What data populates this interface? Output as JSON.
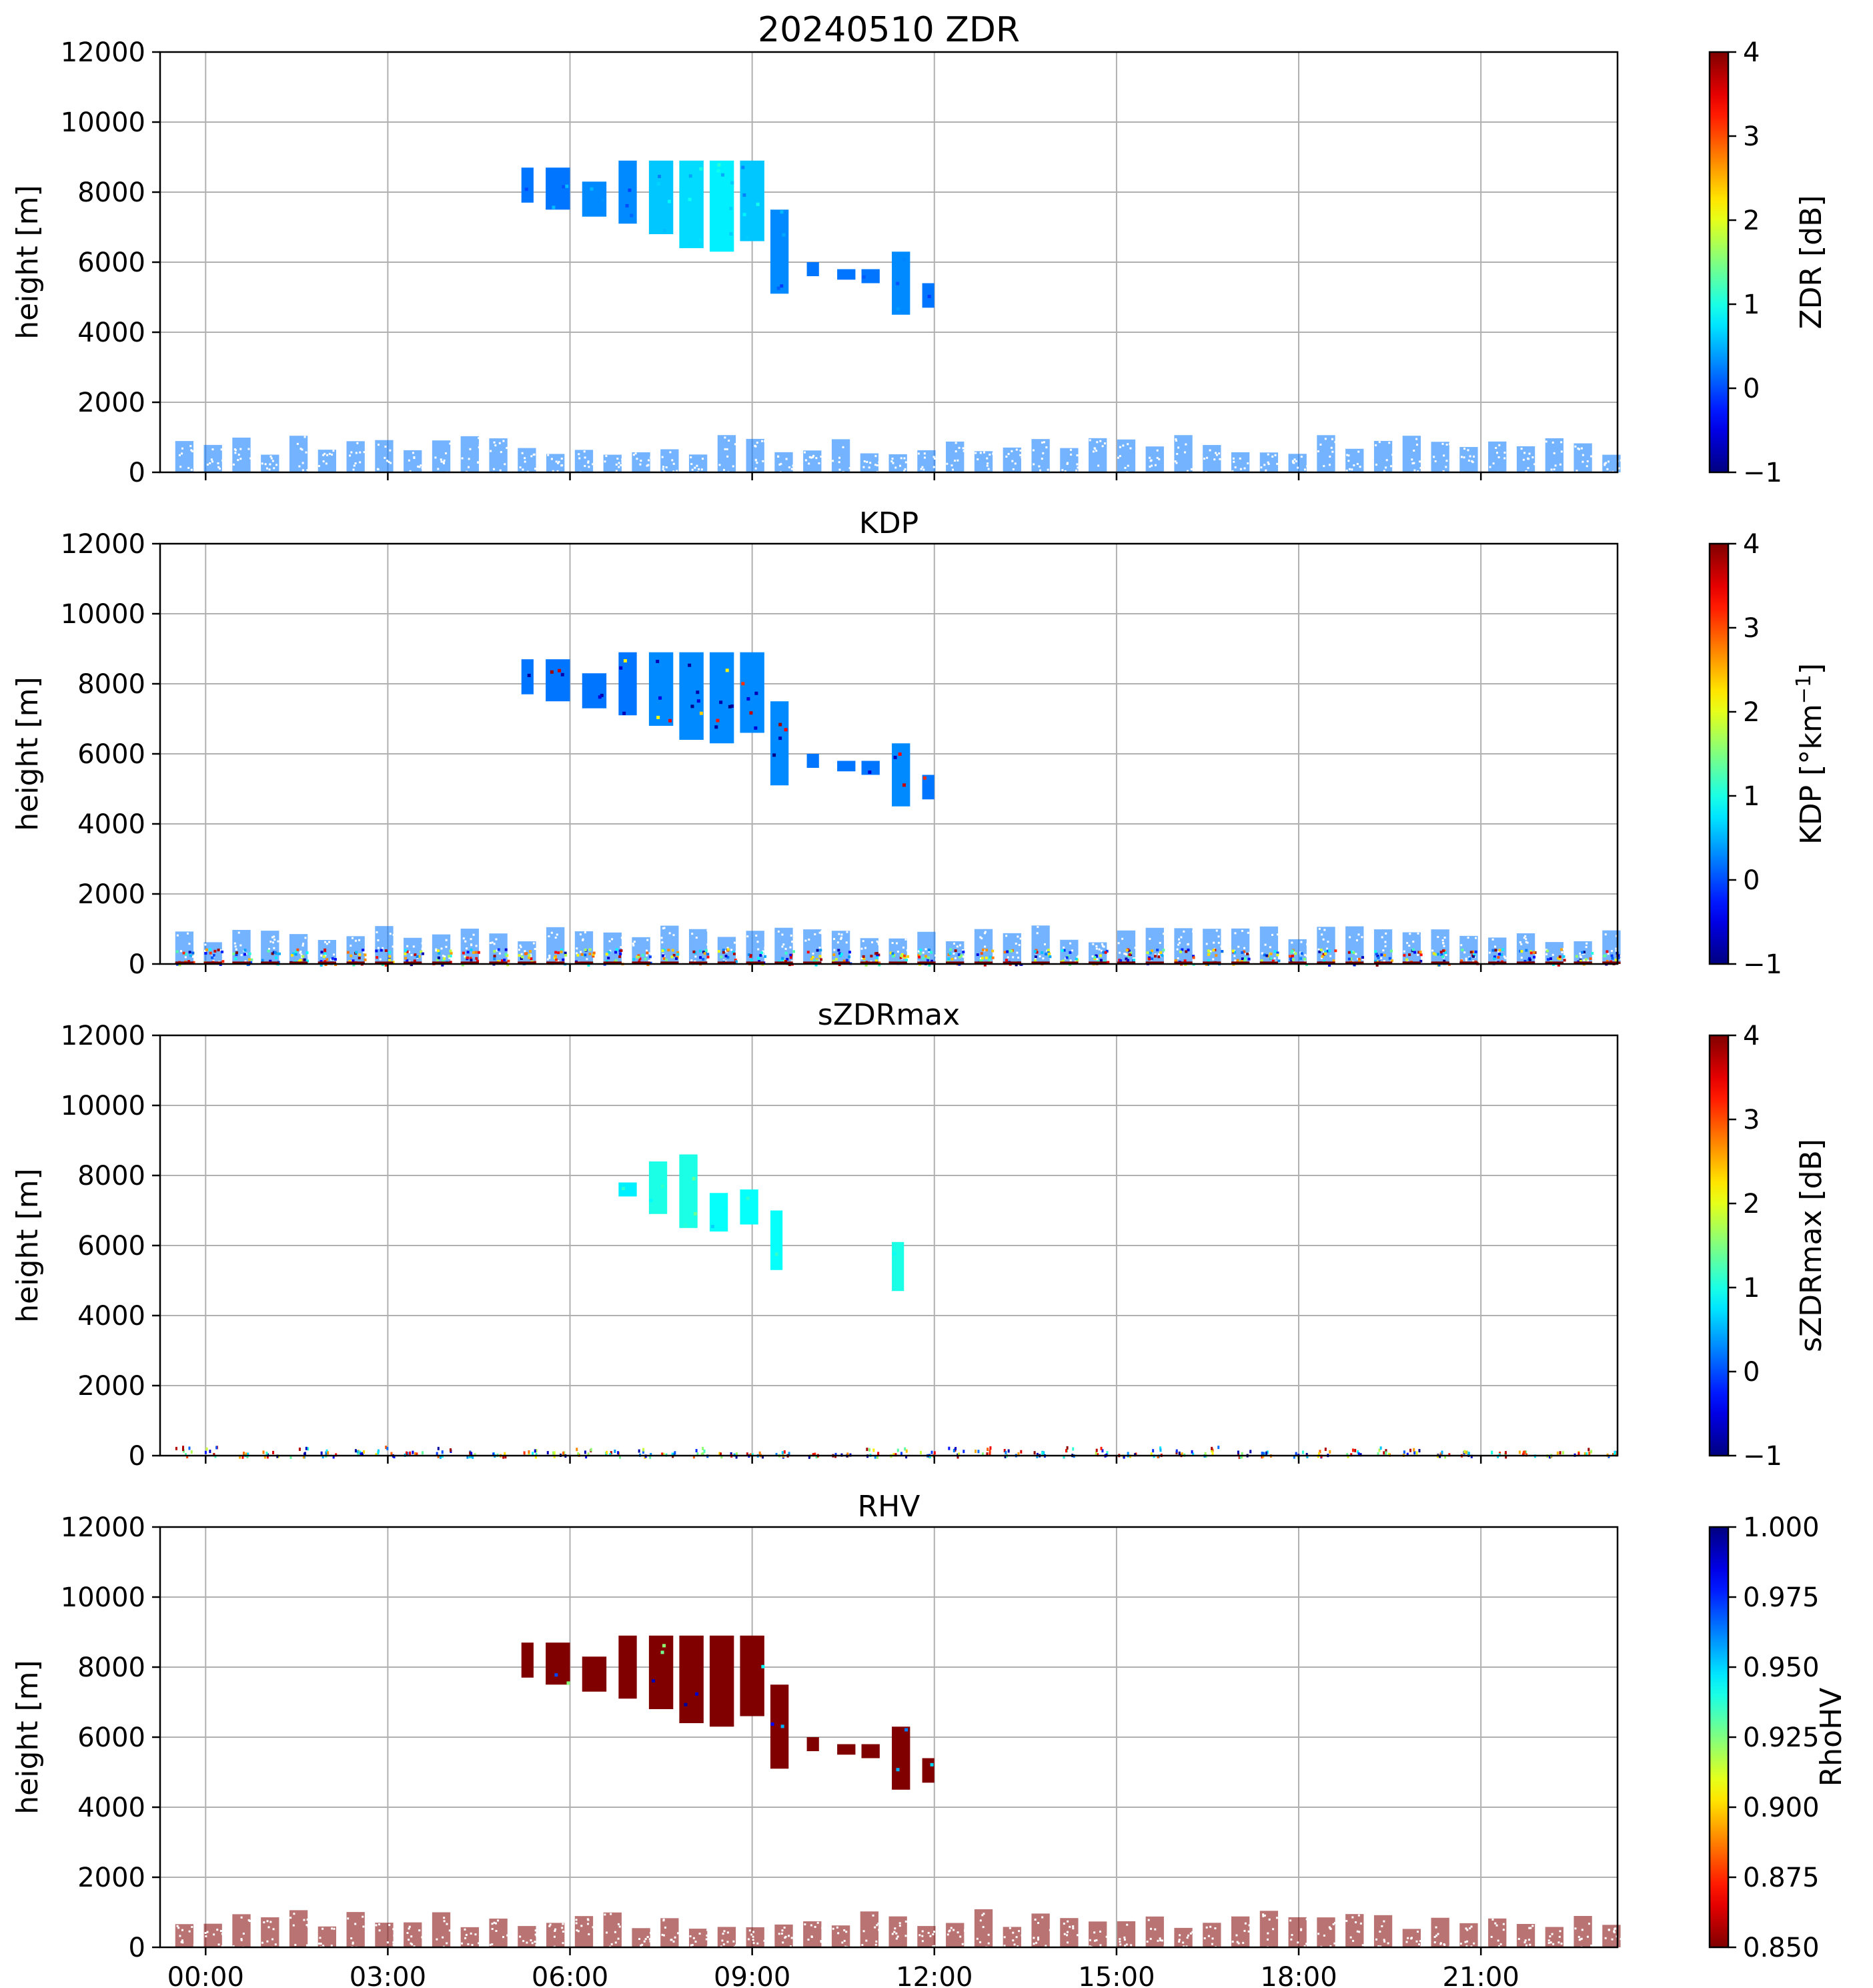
{
  "figure": {
    "xticks": [
      "00:00",
      "03:00",
      "06:00",
      "09:00",
      "12:00",
      "15:00",
      "18:00",
      "21:00"
    ],
    "x_range_hours": [
      -0.75,
      23.25
    ],
    "panels": [
      {
        "id": "zdr",
        "title": "20240510 ZDR",
        "ylabel": "height [m]",
        "ylim": [
          0,
          12000
        ],
        "yticks": [
          "0",
          "2000",
          "4000",
          "6000",
          "8000",
          "10000",
          "12000"
        ],
        "cbar": {
          "label": "ZDR [dB]",
          "label_parts": [],
          "cmap": "jet",
          "range": [
            -1,
            4
          ],
          "ticks": [
            "−1",
            "0",
            "1",
            "2",
            "3",
            "4"
          ]
        }
      },
      {
        "id": "kdp",
        "title": "KDP",
        "ylabel": "height [m]",
        "ylim": [
          0,
          12000
        ],
        "yticks": [
          "0",
          "2000",
          "4000",
          "6000",
          "8000",
          "10000",
          "12000"
        ],
        "cbar": {
          "label": "KDP [°km−1]",
          "label_parts": [
            "KDP [°km",
            "−1",
            "]"
          ],
          "cmap": "jet",
          "range": [
            -1,
            4
          ],
          "ticks": [
            "−1",
            "0",
            "1",
            "2",
            "3",
            "4"
          ]
        }
      },
      {
        "id": "szdrmax",
        "title": "sZDRmax",
        "ylabel": "height [m]",
        "ylim": [
          0,
          12000
        ],
        "yticks": [
          "0",
          "2000",
          "4000",
          "6000",
          "8000",
          "10000",
          "12000"
        ],
        "cbar": {
          "label": "sZDRmax [dB]",
          "label_parts": [],
          "cmap": "jet",
          "range": [
            -1,
            4
          ],
          "ticks": [
            "−1",
            "0",
            "1",
            "2",
            "3",
            "4"
          ]
        }
      },
      {
        "id": "rhv",
        "title": "RHV",
        "ylabel": "height [m]",
        "ylim": [
          0,
          12000
        ],
        "yticks": [
          "0",
          "2000",
          "4000",
          "6000",
          "8000",
          "10000",
          "12000"
        ],
        "cbar": {
          "label": "RhoHV",
          "label_parts": [],
          "cmap": "jet_r",
          "range": [
            0.85,
            1.0
          ],
          "ticks": [
            "0.850",
            "0.875",
            "0.900",
            "0.925",
            "0.950",
            "0.975",
            "1.000"
          ]
        }
      }
    ]
  },
  "chart_data": [
    {
      "type": "heatmap",
      "title": "20240510 ZDR",
      "ylabel": "height [m]",
      "ylim": [
        0,
        12000
      ],
      "colorbar": {
        "label": "ZDR [dB]",
        "range": [
          -1,
          4
        ]
      },
      "features": [
        {
          "t_start": 5.2,
          "t_end": 5.4,
          "h_min": 7700,
          "h_max": 8700,
          "value": 0.2
        },
        {
          "t_start": 5.6,
          "t_end": 6.0,
          "h_min": 7500,
          "h_max": 8700,
          "value": 0.2
        },
        {
          "t_start": 6.2,
          "t_end": 6.6,
          "h_min": 7300,
          "h_max": 8300,
          "value": 0.3
        },
        {
          "t_start": 6.8,
          "t_end": 7.1,
          "h_min": 7100,
          "h_max": 8900,
          "value": 0.3
        },
        {
          "t_start": 7.3,
          "t_end": 7.7,
          "h_min": 6800,
          "h_max": 8900,
          "value": 0.6
        },
        {
          "t_start": 7.8,
          "t_end": 8.2,
          "h_min": 6400,
          "h_max": 8900,
          "value": 0.7
        },
        {
          "t_start": 8.3,
          "t_end": 8.7,
          "h_min": 6300,
          "h_max": 8900,
          "value": 0.8
        },
        {
          "t_start": 8.8,
          "t_end": 9.2,
          "h_min": 6600,
          "h_max": 8900,
          "value": 0.6
        },
        {
          "t_start": 9.3,
          "t_end": 9.6,
          "h_min": 5100,
          "h_max": 7500,
          "value": 0.3
        },
        {
          "t_start": 9.9,
          "t_end": 10.1,
          "h_min": 5600,
          "h_max": 6000,
          "value": 0.2
        },
        {
          "t_start": 10.4,
          "t_end": 10.7,
          "h_min": 5500,
          "h_max": 5800,
          "value": 0.2
        },
        {
          "t_start": 10.8,
          "t_end": 11.1,
          "h_min": 5400,
          "h_max": 5800,
          "value": 0.2
        },
        {
          "t_start": 11.3,
          "t_end": 11.6,
          "h_min": 4500,
          "h_max": 6300,
          "value": 0.3
        },
        {
          "t_start": 11.8,
          "t_end": 12.0,
          "h_min": 4700,
          "h_max": 5400,
          "value": 0.2
        }
      ],
      "boundary_layer": {
        "t_start": -0.5,
        "t_end": 23.25,
        "h_max_range": [
          500,
          1100
        ],
        "value": 0.2
      }
    },
    {
      "type": "heatmap",
      "title": "KDP",
      "ylabel": "height [m]",
      "ylim": [
        0,
        12000
      ],
      "colorbar": {
        "label": "KDP [°km−1]",
        "range": [
          -1,
          4
        ]
      },
      "features": [
        {
          "t_start": 5.2,
          "t_end": 5.4,
          "h_min": 7700,
          "h_max": 8700,
          "value": 0.2
        },
        {
          "t_start": 5.6,
          "t_end": 6.0,
          "h_min": 7500,
          "h_max": 8700,
          "value": 0.2
        },
        {
          "t_start": 6.2,
          "t_end": 6.6,
          "h_min": 7300,
          "h_max": 8300,
          "value": 0.2
        },
        {
          "t_start": 6.8,
          "t_end": 7.1,
          "h_min": 7100,
          "h_max": 8900,
          "value": 0.2
        },
        {
          "t_start": 7.3,
          "t_end": 7.7,
          "h_min": 6800,
          "h_max": 8900,
          "value": 0.3
        },
        {
          "t_start": 7.8,
          "t_end": 8.2,
          "h_min": 6400,
          "h_max": 8900,
          "value": 0.3
        },
        {
          "t_start": 8.3,
          "t_end": 8.7,
          "h_min": 6300,
          "h_max": 8900,
          "value": 0.3
        },
        {
          "t_start": 8.8,
          "t_end": 9.2,
          "h_min": 6600,
          "h_max": 8900,
          "value": 0.3
        },
        {
          "t_start": 9.3,
          "t_end": 9.6,
          "h_min": 5100,
          "h_max": 7500,
          "value": 0.3
        },
        {
          "t_start": 9.9,
          "t_end": 10.1,
          "h_min": 5600,
          "h_max": 6000,
          "value": 0.2
        },
        {
          "t_start": 10.4,
          "t_end": 10.7,
          "h_min": 5500,
          "h_max": 5800,
          "value": 0.2
        },
        {
          "t_start": 10.8,
          "t_end": 11.1,
          "h_min": 5400,
          "h_max": 5800,
          "value": 0.2
        },
        {
          "t_start": 11.3,
          "t_end": 11.6,
          "h_min": 4500,
          "h_max": 6300,
          "value": 0.3
        },
        {
          "t_start": 11.8,
          "t_end": 12.0,
          "h_min": 4700,
          "h_max": 5400,
          "value": 0.2
        }
      ],
      "boundary_layer": {
        "t_start": -0.5,
        "t_end": 23.25,
        "h_max_range": [
          600,
          1100
        ],
        "value": 0.2
      }
    },
    {
      "type": "heatmap",
      "title": "sZDRmax",
      "ylabel": "height [m]",
      "ylim": [
        0,
        12000
      ],
      "colorbar": {
        "label": "sZDRmax [dB]",
        "range": [
          -1,
          4
        ]
      },
      "features": [
        {
          "t_start": 6.8,
          "t_end": 7.1,
          "h_min": 7400,
          "h_max": 7800,
          "value": 0.8
        },
        {
          "t_start": 7.3,
          "t_end": 7.6,
          "h_min": 6900,
          "h_max": 8400,
          "value": 1.0
        },
        {
          "t_start": 7.8,
          "t_end": 8.1,
          "h_min": 6500,
          "h_max": 8600,
          "value": 1.0
        },
        {
          "t_start": 8.3,
          "t_end": 8.6,
          "h_min": 6400,
          "h_max": 7500,
          "value": 0.9
        },
        {
          "t_start": 8.8,
          "t_end": 9.1,
          "h_min": 6600,
          "h_max": 7600,
          "value": 0.9
        },
        {
          "t_start": 9.3,
          "t_end": 9.5,
          "h_min": 5300,
          "h_max": 7000,
          "value": 0.9
        },
        {
          "t_start": 11.3,
          "t_end": 11.5,
          "h_min": 4700,
          "h_max": 6100,
          "value": 1.0
        }
      ],
      "boundary_layer": {
        "t_start": -0.5,
        "t_end": 23.25,
        "h_max_range": [
          100,
          300
        ],
        "value": 2.0
      }
    },
    {
      "type": "heatmap",
      "title": "RHV",
      "ylabel": "height [m]",
      "ylim": [
        0,
        12000
      ],
      "colorbar": {
        "label": "RhoHV",
        "range": [
          0.85,
          1.0
        ]
      },
      "features": [
        {
          "t_start": 5.2,
          "t_end": 5.4,
          "h_min": 7700,
          "h_max": 8700,
          "value": 0.85
        },
        {
          "t_start": 5.6,
          "t_end": 6.0,
          "h_min": 7500,
          "h_max": 8700,
          "value": 0.85
        },
        {
          "t_start": 6.2,
          "t_end": 6.6,
          "h_min": 7300,
          "h_max": 8300,
          "value": 0.85
        },
        {
          "t_start": 6.8,
          "t_end": 7.1,
          "h_min": 7100,
          "h_max": 8900,
          "value": 0.85
        },
        {
          "t_start": 7.3,
          "t_end": 7.7,
          "h_min": 6800,
          "h_max": 8900,
          "value": 0.85
        },
        {
          "t_start": 7.8,
          "t_end": 8.2,
          "h_min": 6400,
          "h_max": 8900,
          "value": 0.85
        },
        {
          "t_start": 8.3,
          "t_end": 8.7,
          "h_min": 6300,
          "h_max": 8900,
          "value": 0.85
        },
        {
          "t_start": 8.8,
          "t_end": 9.2,
          "h_min": 6600,
          "h_max": 8900,
          "value": 0.85
        },
        {
          "t_start": 9.3,
          "t_end": 9.6,
          "h_min": 5100,
          "h_max": 7500,
          "value": 0.85
        },
        {
          "t_start": 9.9,
          "t_end": 10.1,
          "h_min": 5600,
          "h_max": 6000,
          "value": 0.85
        },
        {
          "t_start": 10.4,
          "t_end": 10.7,
          "h_min": 5500,
          "h_max": 5800,
          "value": 0.85
        },
        {
          "t_start": 10.8,
          "t_end": 11.1,
          "h_min": 5400,
          "h_max": 5800,
          "value": 0.85
        },
        {
          "t_start": 11.3,
          "t_end": 11.6,
          "h_min": 4500,
          "h_max": 6300,
          "value": 0.85
        },
        {
          "t_start": 11.8,
          "t_end": 12.0,
          "h_min": 4700,
          "h_max": 5400,
          "value": 0.85
        }
      ],
      "boundary_layer": {
        "t_start": -0.5,
        "t_end": 23.25,
        "h_max_range": [
          500,
          1100
        ],
        "value": 0.85
      }
    }
  ]
}
